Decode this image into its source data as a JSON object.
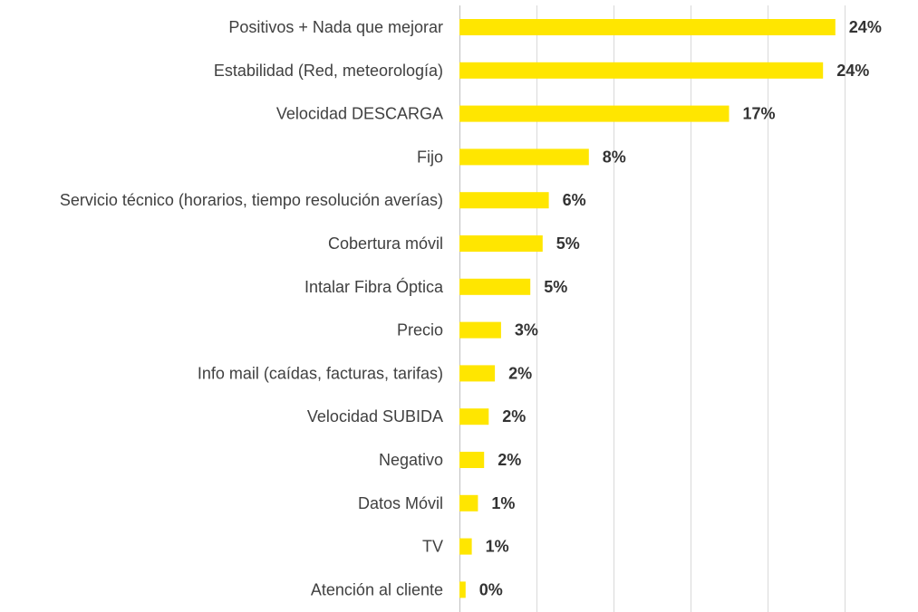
{
  "chart_data": {
    "type": "bar",
    "orientation": "horizontal",
    "title": "",
    "xlabel": "",
    "ylabel": "",
    "xlim": [
      0,
      30
    ],
    "grid": true,
    "legend": "none",
    "bar_color": "#FFE600",
    "value_suffix": "%",
    "categories": [
      "Positivos + Nada que mejorar",
      "Estabilidad (Red, meteorología)",
      "Velocidad DESCARGA",
      "Fijo",
      "Servicio técnico (horarios, tiempo resolución averías)",
      "Cobertura móvil",
      "Intalar Fibra Óptica",
      "Precio",
      "Info mail (caídas, facturas, tarifas)",
      "Velocidad SUBIDA",
      "Negativo",
      "Datos Móvil",
      "TV",
      "Atención al cliente"
    ],
    "values": [
      24.4,
      23.6,
      17.5,
      8.4,
      5.8,
      5.4,
      4.6,
      2.7,
      2.3,
      1.9,
      1.6,
      1.2,
      0.8,
      0.4
    ],
    "value_labels": [
      "24%",
      "24%",
      "17%",
      "8%",
      "6%",
      "5%",
      "5%",
      "3%",
      "2%",
      "2%",
      "2%",
      "1%",
      "1%",
      "0%"
    ]
  }
}
